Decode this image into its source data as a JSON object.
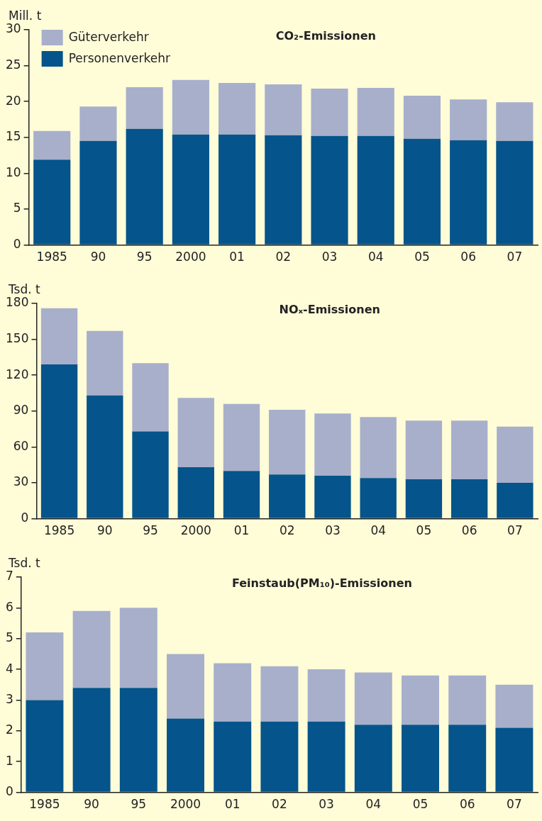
{
  "chart_data": [
    {
      "type": "bar",
      "title": "CO₂-Emissionen",
      "ylabel": "Mill. t",
      "categories": [
        "1985",
        "90",
        "95",
        "2000",
        "01",
        "02",
        "03",
        "04",
        "05",
        "06",
        "07"
      ],
      "stacked": true,
      "legend": "top left",
      "ylim": [
        0,
        30
      ],
      "yticks": [
        0,
        5,
        10,
        15,
        20,
        25,
        30
      ],
      "grid": false,
      "series": [
        {
          "name": "Personenverkehr",
          "color": "#05548b",
          "values": [
            11.9,
            14.5,
            16.2,
            15.4,
            15.4,
            15.3,
            15.2,
            15.2,
            14.8,
            14.6,
            14.5
          ]
        },
        {
          "name": "Güterverkehr",
          "color": "#a8afcb",
          "values": [
            4.0,
            4.8,
            5.8,
            7.6,
            7.2,
            7.1,
            6.6,
            6.7,
            6.0,
            5.7,
            5.4
          ]
        }
      ]
    },
    {
      "type": "bar",
      "title": "NOₓ-Emissionen",
      "ylabel": "Tsd. t",
      "categories": [
        "1985",
        "90",
        "95",
        "2000",
        "01",
        "02",
        "03",
        "04",
        "05",
        "06",
        "07"
      ],
      "stacked": true,
      "ylim": [
        0,
        180
      ],
      "yticks": [
        0,
        30,
        60,
        90,
        120,
        150,
        180
      ],
      "grid": false,
      "series": [
        {
          "color": "#05548b",
          "values": [
            129,
            103,
            73,
            43,
            40,
            37,
            36,
            34,
            33,
            33,
            30
          ]
        },
        {
          "color": "#a8afcb",
          "values": [
            47,
            54,
            57,
            58,
            56,
            54,
            52,
            51,
            49,
            49,
            47
          ]
        }
      ]
    },
    {
      "type": "bar",
      "title": "Feinstaub(PM₁₀)-Emissionen",
      "ylabel": "Tsd. t",
      "categories": [
        "1985",
        "90",
        "95",
        "2000",
        "01",
        "02",
        "03",
        "04",
        "05",
        "06",
        "07"
      ],
      "stacked": true,
      "ylim": [
        0,
        7
      ],
      "yticks": [
        0,
        1,
        2,
        3,
        4,
        5,
        6,
        7
      ],
      "grid": false,
      "series": [
        {
          "color": "#05548b",
          "values": [
            3.0,
            3.4,
            3.4,
            2.4,
            2.3,
            2.3,
            2.3,
            2.2,
            2.2,
            2.2,
            2.1
          ]
        },
        {
          "color": "#a8afcb",
          "values": [
            2.2,
            2.5,
            2.6,
            2.1,
            1.9,
            1.8,
            1.7,
            1.7,
            1.6,
            1.6,
            1.4
          ]
        }
      ]
    }
  ]
}
